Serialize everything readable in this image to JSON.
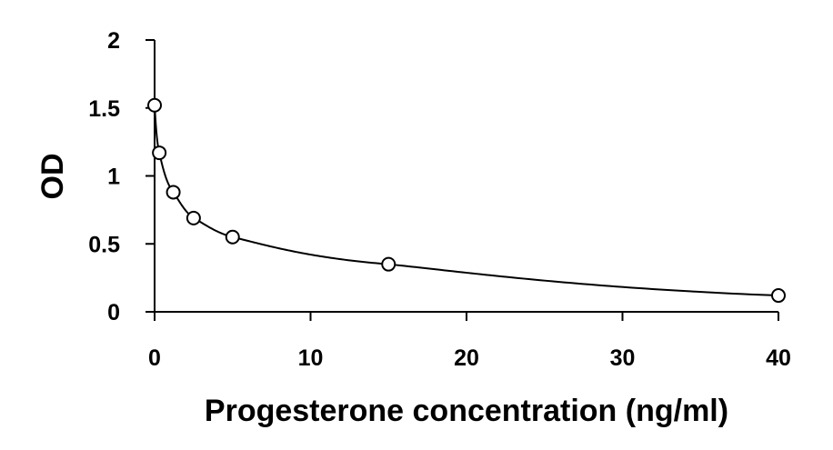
{
  "chart_data": {
    "type": "scatter",
    "title": "",
    "xlabel": "Progesterone concentration (ng/ml)",
    "ylabel": "OD",
    "xlim": [
      0,
      40
    ],
    "ylim": [
      0,
      2
    ],
    "x_ticks": [
      0,
      10,
      20,
      30,
      40
    ],
    "y_ticks": [
      0,
      0.5,
      1,
      1.5,
      2
    ],
    "x_tick_labels": [
      "0",
      "10",
      "20",
      "30",
      "40"
    ],
    "y_tick_labels": [
      "0",
      "0.5",
      "1",
      "1.5",
      "2"
    ],
    "grid": false,
    "legend": "none",
    "series": [
      {
        "marker": "open-circle",
        "x": [
          0,
          0.3,
          1.2,
          2.5,
          5,
          15,
          40
        ],
        "y": [
          1.52,
          1.17,
          0.88,
          0.69,
          0.55,
          0.35,
          0.12
        ]
      }
    ],
    "trendline": {
      "type": "smooth-fit",
      "color": "#000000"
    }
  }
}
